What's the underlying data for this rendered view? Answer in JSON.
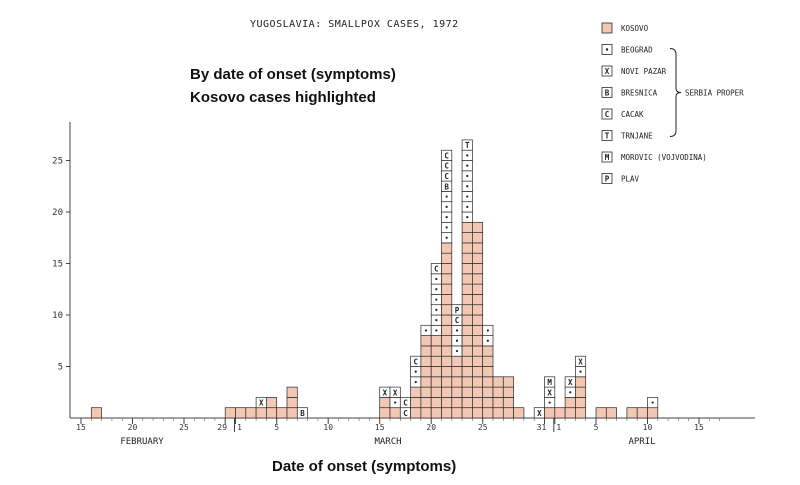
{
  "chart_data": {
    "type": "bar",
    "subtype": "stacked-case-histogram",
    "title": "YUGOSLAVIA:  SMALLPOX CASES, 1972",
    "annotation_lines": [
      "By date of onset (symptoms)",
      "Kosovo cases highlighted"
    ],
    "xlabel": "Date of onset (symptoms)",
    "ylabel": "",
    "ylim": [
      0,
      29
    ],
    "yticks": [
      5,
      10,
      15,
      20,
      25
    ],
    "x_tick_labels": [
      "15",
      "20",
      "25",
      "29",
      "1",
      "5",
      "10",
      "15",
      "20",
      "25",
      "31",
      "1",
      "5",
      "10",
      "15"
    ],
    "month_labels": [
      "FEBRUARY",
      "MARCH",
      "APRIL"
    ],
    "colors": {
      "kosovo": "#f2c8b4",
      "other": "#ffffff",
      "stroke": "#2a2a2a"
    },
    "legend": {
      "items": [
        {
          "symbol": "",
          "label": "KOSOVO"
        },
        {
          "symbol": "•",
          "label": "BEOGRAD"
        },
        {
          "symbol": "X",
          "label": "NOVI PAZAR"
        },
        {
          "symbol": "B",
          "label": "BRESNICA"
        },
        {
          "symbol": "C",
          "label": "CACAK"
        },
        {
          "symbol": "T",
          "label": "TRNJANE"
        },
        {
          "symbol": "M",
          "label": "MOROVIC (VOJVODINA)"
        },
        {
          "symbol": "P",
          "label": "PLAV"
        }
      ],
      "bracket_label": "SERBIA PROPER"
    },
    "days": [
      {
        "date": "Feb 16",
        "kosovo": 1,
        "other": []
      },
      {
        "date": "Feb 29",
        "kosovo": 1,
        "other": []
      },
      {
        "date": "Mar 1",
        "kosovo": 1,
        "other": []
      },
      {
        "date": "Mar 2",
        "kosovo": 1,
        "other": []
      },
      {
        "date": "Mar 3",
        "kosovo": 1,
        "other": [
          "X"
        ]
      },
      {
        "date": "Mar 4",
        "kosovo": 2,
        "other": []
      },
      {
        "date": "Mar 5",
        "kosovo": 1,
        "other": []
      },
      {
        "date": "Mar 6",
        "kosovo": 3,
        "other": []
      },
      {
        "date": "Mar 7",
        "kosovo": 0,
        "other": [
          "B"
        ]
      },
      {
        "date": "Mar 15",
        "kosovo": 2,
        "other": [
          "X"
        ]
      },
      {
        "date": "Mar 16",
        "kosovo": 1,
        "other": [
          "•",
          "X"
        ]
      },
      {
        "date": "Mar 17",
        "kosovo": 0,
        "other": [
          "C",
          "C"
        ]
      },
      {
        "date": "Mar 18",
        "kosovo": 3,
        "other": [
          "•",
          "•",
          "C"
        ]
      },
      {
        "date": "Mar 19",
        "kosovo": 8,
        "other": [
          "•"
        ]
      },
      {
        "date": "Mar 20",
        "kosovo": 8,
        "other": [
          "•",
          "•",
          "•",
          "•",
          "•",
          "•",
          "C"
        ]
      },
      {
        "date": "Mar 21",
        "kosovo": 17,
        "other": [
          "•",
          "•",
          "•",
          "•",
          "•",
          "B",
          "C",
          "C",
          "C"
        ]
      },
      {
        "date": "Mar 22",
        "kosovo": 6,
        "other": [
          "•",
          "•",
          "•",
          "C",
          "P"
        ]
      },
      {
        "date": "Mar 23",
        "kosovo": 19,
        "other": [
          "•",
          "•",
          "•",
          "•",
          "•",
          "•",
          "•",
          "T"
        ]
      },
      {
        "date": "Mar 24",
        "kosovo": 19,
        "other": []
      },
      {
        "date": "Mar 25",
        "kosovo": 7,
        "other": [
          "•",
          "•"
        ]
      },
      {
        "date": "Mar 26",
        "kosovo": 4,
        "other": []
      },
      {
        "date": "Mar 27",
        "kosovo": 4,
        "other": []
      },
      {
        "date": "Mar 28",
        "kosovo": 1,
        "other": []
      },
      {
        "date": "Mar 30",
        "kosovo": 0,
        "other": [
          "X"
        ]
      },
      {
        "date": "Mar 31",
        "kosovo": 1,
        "other": [
          "•",
          "X",
          "M"
        ]
      },
      {
        "date": "Apr 1",
        "kosovo": 1,
        "other": []
      },
      {
        "date": "Apr 2",
        "kosovo": 2,
        "other": [
          "•",
          "X"
        ]
      },
      {
        "date": "Apr 3",
        "kosovo": 4,
        "other": [
          "•",
          "X"
        ]
      },
      {
        "date": "Apr 5",
        "kosovo": 1,
        "other": []
      },
      {
        "date": "Apr 6",
        "kosovo": 1,
        "other": []
      },
      {
        "date": "Apr 8",
        "kosovo": 1,
        "other": []
      },
      {
        "date": "Apr 9",
        "kosovo": 1,
        "other": []
      },
      {
        "date": "Apr 10",
        "kosovo": 1,
        "other": [
          "•"
        ]
      }
    ]
  }
}
